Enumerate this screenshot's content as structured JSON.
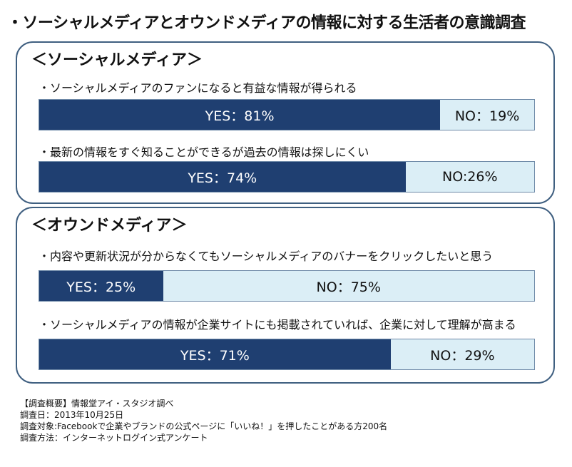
{
  "title": "・ソーシャルメディアとオウンドメディアの情報に対する生活者の意識調査",
  "chart_data": [
    {
      "type": "bar",
      "section": "＜ソーシャルメディア＞",
      "items": [
        {
          "question": "・ソーシャルメディアのファンになると有益な情報が得られる",
          "yes_value": 81,
          "no_value": 19,
          "yes_label": "YES：81%",
          "no_label": "NO：19%"
        },
        {
          "question": "・最新の情報をすぐ知ることができるが過去の情報は探しにくい",
          "yes_value": 74,
          "no_value": 26,
          "yes_label": "YES：74%",
          "no_label": "NO:26%"
        }
      ]
    },
    {
      "type": "bar",
      "section": "＜オウンドメディア＞",
      "items": [
        {
          "question": "・内容や更新状況が分からなくてもソーシャルメディアのバナーをクリックしたいと思う",
          "yes_value": 25,
          "no_value": 75,
          "yes_label": "YES：25%",
          "no_label": "NO：75%"
        },
        {
          "question": "・ソーシャルメディアの情報が企業サイトにも掲載されていれば、企業に対して理解が高まる",
          "yes_value": 71,
          "no_value": 29,
          "yes_label": "YES：71%",
          "no_label": "NO：29%"
        }
      ]
    }
  ],
  "colors": {
    "yes_bar": "#1f3f71",
    "no_bar": "#dbeef6",
    "panel_border": "#3f5f80"
  },
  "footnote": [
    "【調査概要】情報堂アイ・スタジオ調べ",
    "調査日：2013年10月25日",
    "調査対象:Facebookで企業やブランドの公式ページに「いいね！」を押したことがある方200名",
    "調査方法：インターネットログイン式アンケート"
  ]
}
